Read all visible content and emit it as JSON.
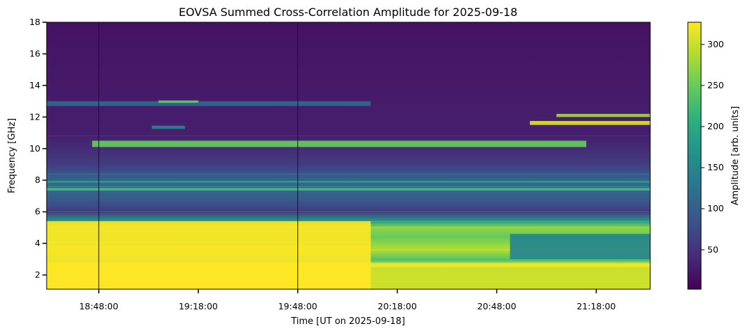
{
  "chart_data": {
    "type": "heatmap",
    "title": "EOVSA Summed Cross-Correlation Amplitude for 2025-09-18",
    "xlabel": "Time [UT on 2025-09-18]",
    "ylabel": "Frequency [GHz]",
    "colorbar_label": "Amplitude [arb. units]",
    "colormap": "viridis",
    "xlim": [
      "18:32:17",
      "21:34:17"
    ],
    "ylim": [
      1.1,
      18
    ],
    "clim": [
      2,
      327
    ],
    "x_ticks": [
      {
        "t": "18:48:00",
        "label": "18:48:00"
      },
      {
        "t": "19:18:00",
        "label": "19:18:00"
      },
      {
        "t": "19:48:00",
        "label": "19:48:00"
      },
      {
        "t": "20:18:00",
        "label": "20:18:00"
      },
      {
        "t": "20:48:00",
        "label": "20:48:00"
      },
      {
        "t": "21:18:00",
        "label": "21:18:00"
      }
    ],
    "y_ticks": [
      {
        "v": 2,
        "label": "2"
      },
      {
        "v": 4,
        "label": "4"
      },
      {
        "v": 6,
        "label": "6"
      },
      {
        "v": 8,
        "label": "8"
      },
      {
        "v": 10,
        "label": "10"
      },
      {
        "v": 12,
        "label": "12"
      },
      {
        "v": 14,
        "label": "14"
      },
      {
        "v": 16,
        "label": "16"
      },
      {
        "v": 18,
        "label": "18"
      }
    ],
    "colorbar_ticks": [
      {
        "v": 50,
        "label": "50"
      },
      {
        "v": 100,
        "label": "100"
      },
      {
        "v": 150,
        "label": "150"
      },
      {
        "v": 200,
        "label": "200"
      },
      {
        "v": 250,
        "label": "250"
      },
      {
        "v": 300,
        "label": "300"
      }
    ],
    "baseline_amplitude_profile": [
      {
        "f": 1.1,
        "amp": 325
      },
      {
        "f": 2.7,
        "amp": 320
      },
      {
        "f": 2.9,
        "amp": 230
      },
      {
        "f": 3.6,
        "amp": 290
      },
      {
        "f": 4.4,
        "amp": 250
      },
      {
        "f": 5.0,
        "amp": 270
      },
      {
        "f": 5.4,
        "amp": 180
      },
      {
        "f": 6.0,
        "amp": 60
      },
      {
        "f": 6.8,
        "amp": 95
      },
      {
        "f": 7.6,
        "amp": 120
      },
      {
        "f": 8.4,
        "amp": 90
      },
      {
        "f": 9.0,
        "amp": 60
      },
      {
        "f": 10.8,
        "amp": 30
      },
      {
        "f": 18.0,
        "amp": 18
      }
    ],
    "features": [
      {
        "f0": 1.1,
        "f1": 5.4,
        "t0": "18:32:17",
        "t1": "20:10:00",
        "amp": 327,
        "desc": "saturated low band, early"
      },
      {
        "f0": 1.1,
        "f1": 2.5,
        "t0": "20:10:00",
        "t1": "21:34:17",
        "amp": 300,
        "desc": "bright low band, late"
      },
      {
        "f0": 3.0,
        "f1": 4.6,
        "t0": "20:52:00",
        "t1": "21:34:17",
        "amp": 150,
        "desc": "dimmer band after 20:52"
      },
      {
        "f0": 12.7,
        "f1": 13.0,
        "t0": "18:32:17",
        "t1": "20:10:00",
        "amp": 110,
        "desc": "12.8 GHz faint band"
      },
      {
        "f0": 12.9,
        "f1": 13.05,
        "t0": "19:06:00",
        "t1": "19:18:00",
        "amp": 250,
        "desc": "13 GHz bright streak"
      },
      {
        "f0": 11.25,
        "f1": 11.45,
        "t0": "19:04:00",
        "t1": "19:14:00",
        "amp": 150,
        "desc": "11.3 GHz streak"
      },
      {
        "f0": 11.5,
        "f1": 11.75,
        "t0": "20:58:00",
        "t1": "21:34:17",
        "amp": 310,
        "desc": "11.6 GHz bright band"
      },
      {
        "f0": 12.0,
        "f1": 12.2,
        "t0": "21:06:00",
        "t1": "21:34:17",
        "amp": 280,
        "desc": "12.1 GHz bright band"
      },
      {
        "f0": 7.35,
        "f1": 7.5,
        "t0": "18:32:17",
        "t1": "21:34:17",
        "amp": 230,
        "desc": "7.4 GHz line"
      },
      {
        "f0": 7.85,
        "f1": 7.95,
        "t0": "18:32:17",
        "t1": "21:34:17",
        "amp": 200,
        "desc": "7.9 GHz line"
      },
      {
        "f0": 10.1,
        "f1": 10.5,
        "t0": "18:46:00",
        "t1": "21:15:00",
        "amp": 250,
        "desc": "10.3 GHz speckle"
      }
    ],
    "dropouts": [
      {
        "t": "18:48:00"
      },
      {
        "t": "19:48:00"
      }
    ]
  }
}
